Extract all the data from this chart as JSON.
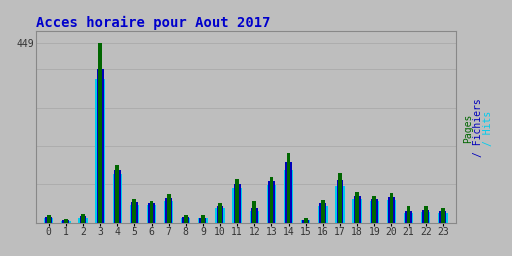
{
  "title": "Acces horaire pour Aout 2017",
  "background_color": "#bebebe",
  "plot_bg_color": "#bebebe",
  "title_color": "#0000cc",
  "hours": [
    0,
    1,
    2,
    3,
    4,
    5,
    6,
    7,
    8,
    9,
    10,
    11,
    12,
    13,
    14,
    15,
    16,
    17,
    18,
    19,
    20,
    21,
    22,
    23
  ],
  "pages": [
    20,
    10,
    22,
    449,
    145,
    60,
    55,
    72,
    20,
    20,
    50,
    110,
    55,
    115,
    175,
    12,
    58,
    125,
    78,
    68,
    75,
    42,
    42,
    36
  ],
  "fichiers": [
    15,
    8,
    16,
    385,
    132,
    52,
    50,
    63,
    14,
    13,
    42,
    98,
    38,
    105,
    152,
    8,
    50,
    108,
    68,
    60,
    65,
    30,
    32,
    30
  ],
  "hits": [
    11,
    5,
    11,
    360,
    122,
    45,
    44,
    55,
    11,
    11,
    36,
    88,
    30,
    95,
    133,
    6,
    43,
    92,
    60,
    54,
    57,
    24,
    27,
    24
  ],
  "color_pages": "#006600",
  "color_fichiers": "#0000bb",
  "color_hits": "#00ccee",
  "ylim_max": 480,
  "grid_color": "#aaaaaa",
  "spine_color": "#888888"
}
